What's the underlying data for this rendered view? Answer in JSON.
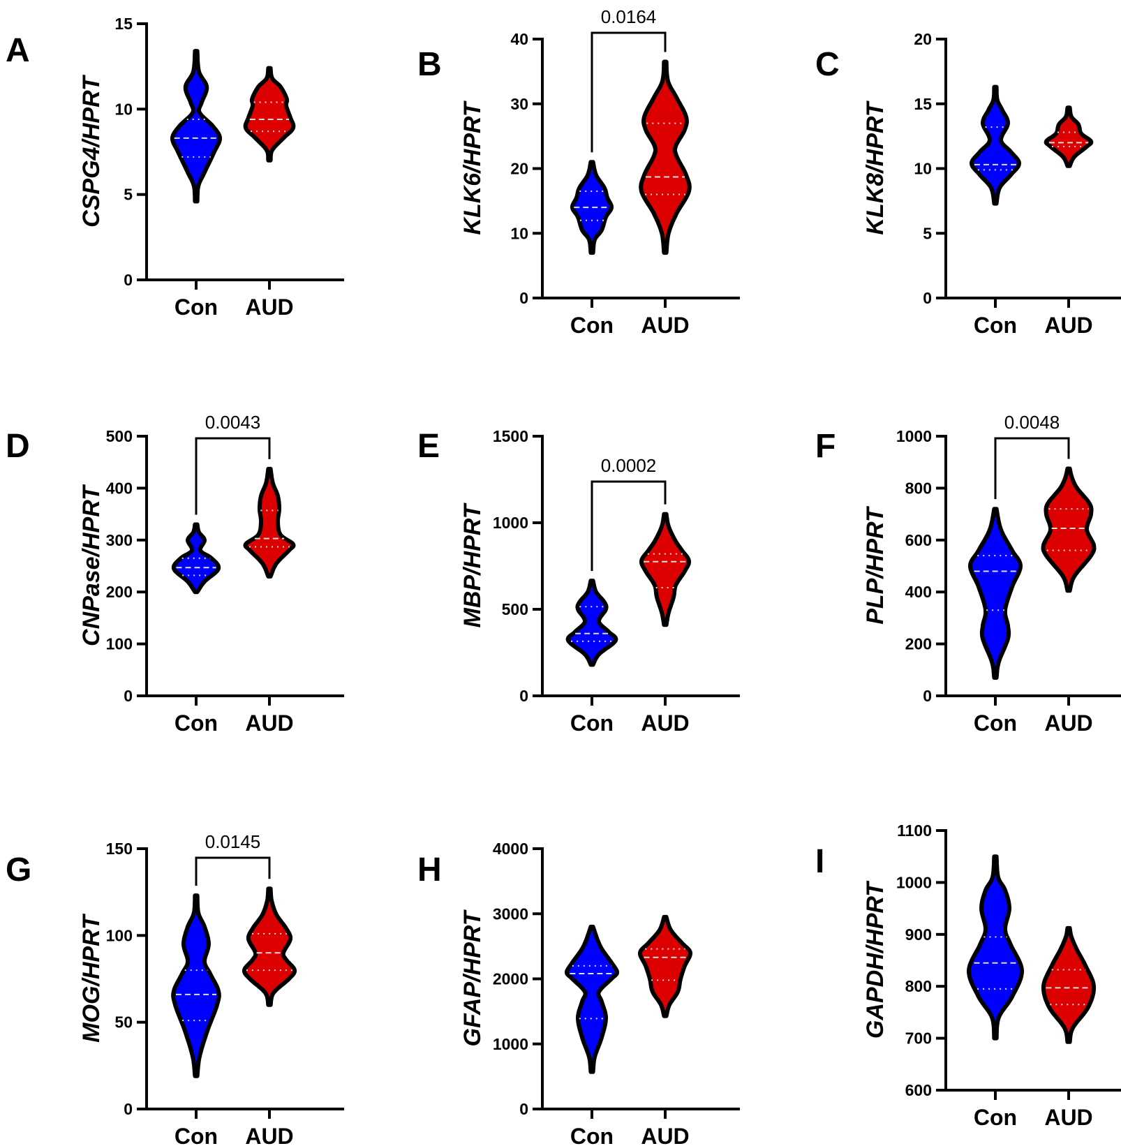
{
  "chart_data": [
    {
      "type": "violin",
      "panel": "A",
      "ylabel": "CSPG4/HPRT",
      "ylim": [
        0,
        15
      ],
      "yticks": [
        0,
        5,
        10,
        15
      ],
      "categories": [
        "Con",
        "AUD"
      ],
      "p_value": null,
      "series": [
        {
          "category": "Con",
          "color": "#0000FF",
          "min": 4.6,
          "max": 13.4,
          "median": 8.3,
          "q1": 7.2,
          "q3": 9.4,
          "density": [
            [
              4.6,
              0.04
            ],
            [
              5.5,
              0.08
            ],
            [
              6.3,
              0.3
            ],
            [
              7.5,
              0.65
            ],
            [
              8.3,
              0.85
            ],
            [
              9,
              0.6
            ],
            [
              9.8,
              0.12
            ],
            [
              10.4,
              0.2
            ],
            [
              11.3,
              0.38
            ],
            [
              12.2,
              0.1
            ],
            [
              13.4,
              0.04
            ]
          ]
        },
        {
          "category": "AUD",
          "color": "#DD0000",
          "min": 7,
          "max": 12.4,
          "median": 9.4,
          "q1": 8.7,
          "q3": 10.4,
          "density": [
            [
              7,
              0.04
            ],
            [
              7.6,
              0.1
            ],
            [
              8.3,
              0.5
            ],
            [
              8.9,
              0.85
            ],
            [
              9.5,
              0.75
            ],
            [
              10.2,
              0.6
            ],
            [
              10.6,
              0.62
            ],
            [
              11.3,
              0.4
            ],
            [
              11.8,
              0.1
            ],
            [
              12.4,
              0.04
            ]
          ]
        }
      ]
    },
    {
      "type": "violin",
      "panel": "B",
      "ylabel": "KLK6/HPRT",
      "ylim": [
        0,
        40
      ],
      "yticks": [
        0,
        10,
        20,
        30,
        40
      ],
      "categories": [
        "Con",
        "AUD"
      ],
      "p_value": "0.0164",
      "series": [
        {
          "category": "Con",
          "color": "#0000FF",
          "min": 7,
          "max": 21,
          "median": 14,
          "q1": 12,
          "q3": 16.5,
          "density": [
            [
              7,
              0.04
            ],
            [
              9,
              0.1
            ],
            [
              10.5,
              0.35
            ],
            [
              12.5,
              0.5
            ],
            [
              14,
              0.7
            ],
            [
              15.5,
              0.55
            ],
            [
              17,
              0.45
            ],
            [
              19,
              0.15
            ],
            [
              21,
              0.04
            ]
          ]
        },
        {
          "category": "AUD",
          "color": "#DD0000",
          "min": 7,
          "max": 36.5,
          "median": 18.7,
          "q1": 16,
          "q3": 27,
          "density": [
            [
              7,
              0.04
            ],
            [
              10,
              0.12
            ],
            [
              13,
              0.4
            ],
            [
              16.5,
              0.85
            ],
            [
              19,
              0.75
            ],
            [
              22,
              0.4
            ],
            [
              23.5,
              0.38
            ],
            [
              26,
              0.7
            ],
            [
              28,
              0.75
            ],
            [
              31,
              0.4
            ],
            [
              33.5,
              0.1
            ],
            [
              36.5,
              0.04
            ]
          ]
        }
      ]
    },
    {
      "type": "violin",
      "panel": "C",
      "ylabel": "KLK8/HPRT",
      "ylim": [
        0,
        20
      ],
      "yticks": [
        0,
        5,
        10,
        15,
        20
      ],
      "categories": [
        "Con",
        "AUD"
      ],
      "p_value": null,
      "series": [
        {
          "category": "Con",
          "color": "#0000FF",
          "min": 7.3,
          "max": 16.3,
          "median": 10.3,
          "q1": 9.9,
          "q3": 13.2,
          "density": [
            [
              7.3,
              0.04
            ],
            [
              8.5,
              0.15
            ],
            [
              9.5,
              0.55
            ],
            [
              10.4,
              0.85
            ],
            [
              11.3,
              0.55
            ],
            [
              12.2,
              0.2
            ],
            [
              13.5,
              0.45
            ],
            [
              14.5,
              0.25
            ],
            [
              15.3,
              0.07
            ],
            [
              16.3,
              0.04
            ]
          ]
        },
        {
          "category": "AUD",
          "color": "#DD0000",
          "min": 10.2,
          "max": 14.7,
          "median": 12,
          "q1": 11.7,
          "q3": 12.8,
          "density": [
            [
              10.2,
              0.04
            ],
            [
              10.9,
              0.2
            ],
            [
              11.7,
              0.65
            ],
            [
              12.1,
              0.8
            ],
            [
              12.7,
              0.45
            ],
            [
              13.4,
              0.35
            ],
            [
              14,
              0.1
            ],
            [
              14.7,
              0.04
            ]
          ]
        }
      ]
    },
    {
      "type": "violin",
      "panel": "D",
      "ylabel": "CNPase/HPRT",
      "ylim": [
        0,
        500
      ],
      "yticks": [
        0,
        100,
        200,
        300,
        400,
        500
      ],
      "categories": [
        "Con",
        "AUD"
      ],
      "p_value": "0.0043",
      "series": [
        {
          "category": "Con",
          "color": "#0000FF",
          "min": 200,
          "max": 330,
          "median": 247,
          "q1": 232,
          "q3": 265,
          "density": [
            [
              200,
              0.04
            ],
            [
              220,
              0.3
            ],
            [
              245,
              0.8
            ],
            [
              265,
              0.55
            ],
            [
              280,
              0.15
            ],
            [
              300,
              0.3
            ],
            [
              315,
              0.1
            ],
            [
              330,
              0.04
            ]
          ]
        },
        {
          "category": "AUD",
          "color": "#DD0000",
          "min": 230,
          "max": 437,
          "median": 303,
          "q1": 287,
          "q3": 357,
          "density": [
            [
              230,
              0.04
            ],
            [
              255,
              0.25
            ],
            [
              280,
              0.7
            ],
            [
              292,
              0.85
            ],
            [
              310,
              0.4
            ],
            [
              335,
              0.3
            ],
            [
              360,
              0.35
            ],
            [
              385,
              0.3
            ],
            [
              410,
              0.12
            ],
            [
              437,
              0.04
            ]
          ]
        }
      ]
    },
    {
      "type": "violin",
      "panel": "E",
      "ylabel": "MBP/HPRT",
      "ylim": [
        0,
        1500
      ],
      "yticks": [
        0,
        500,
        1000,
        1500
      ],
      "categories": [
        "Con",
        "AUD"
      ],
      "p_value": "0.0002",
      "series": [
        {
          "category": "Con",
          "color": "#0000FF",
          "min": 180,
          "max": 665,
          "median": 360,
          "q1": 315,
          "q3": 515,
          "density": [
            [
              180,
              0.04
            ],
            [
              240,
              0.25
            ],
            [
              320,
              0.85
            ],
            [
              370,
              0.6
            ],
            [
              430,
              0.25
            ],
            [
              500,
              0.5
            ],
            [
              540,
              0.45
            ],
            [
              600,
              0.15
            ],
            [
              665,
              0.04
            ]
          ]
        },
        {
          "category": "AUD",
          "color": "#DD0000",
          "min": 410,
          "max": 1050,
          "median": 775,
          "q1": 625,
          "q3": 820,
          "density": [
            [
              410,
              0.04
            ],
            [
              480,
              0.12
            ],
            [
              570,
              0.3
            ],
            [
              640,
              0.38
            ],
            [
              720,
              0.7
            ],
            [
              780,
              0.85
            ],
            [
              840,
              0.6
            ],
            [
              900,
              0.35
            ],
            [
              980,
              0.12
            ],
            [
              1050,
              0.04
            ]
          ]
        }
      ]
    },
    {
      "type": "violin",
      "panel": "F",
      "ylabel": "PLP/HPRT",
      "ylim": [
        0,
        1000
      ],
      "yticks": [
        0,
        200,
        400,
        600,
        800,
        1000
      ],
      "categories": [
        "Con",
        "AUD"
      ],
      "p_value": "0.0048",
      "series": [
        {
          "category": "Con",
          "color": "#0000FF",
          "min": 70,
          "max": 720,
          "median": 480,
          "q1": 330,
          "q3": 540,
          "density": [
            [
              70,
              0.04
            ],
            [
              130,
              0.12
            ],
            [
              220,
              0.45
            ],
            [
              270,
              0.45
            ],
            [
              330,
              0.35
            ],
            [
              420,
              0.6
            ],
            [
              500,
              0.9
            ],
            [
              560,
              0.6
            ],
            [
              640,
              0.2
            ],
            [
              720,
              0.04
            ]
          ]
        },
        {
          "category": "AUD",
          "color": "#DD0000",
          "min": 405,
          "max": 875,
          "median": 645,
          "q1": 560,
          "q3": 720,
          "density": [
            [
              405,
              0.04
            ],
            [
              460,
              0.2
            ],
            [
              540,
              0.8
            ],
            [
              580,
              0.9
            ],
            [
              640,
              0.65
            ],
            [
              700,
              0.8
            ],
            [
              740,
              0.75
            ],
            [
              800,
              0.3
            ],
            [
              840,
              0.12
            ],
            [
              875,
              0.04
            ]
          ]
        }
      ]
    },
    {
      "type": "violin",
      "panel": "G",
      "ylabel": "MOG/HPRT",
      "ylim": [
        0,
        150
      ],
      "yticks": [
        0,
        50,
        100,
        150
      ],
      "categories": [
        "Con",
        "AUD"
      ],
      "p_value": "0.0145",
      "series": [
        {
          "category": "Con",
          "color": "#0000FF",
          "min": 19,
          "max": 123,
          "median": 66,
          "q1": 51,
          "q3": 80,
          "density": [
            [
              19,
              0.04
            ],
            [
              30,
              0.12
            ],
            [
              45,
              0.4
            ],
            [
              60,
              0.75
            ],
            [
              68,
              0.8
            ],
            [
              78,
              0.5
            ],
            [
              85,
              0.3
            ],
            [
              95,
              0.45
            ],
            [
              105,
              0.3
            ],
            [
              113,
              0.08
            ],
            [
              123,
              0.04
            ]
          ]
        },
        {
          "category": "AUD",
          "color": "#DD0000",
          "min": 60,
          "max": 127,
          "median": 90,
          "q1": 80,
          "q3": 101,
          "density": [
            [
              60,
              0.04
            ],
            [
              67,
              0.15
            ],
            [
              75,
              0.7
            ],
            [
              80,
              0.9
            ],
            [
              86,
              0.6
            ],
            [
              90,
              0.5
            ],
            [
              98,
              0.75
            ],
            [
              104,
              0.6
            ],
            [
              112,
              0.25
            ],
            [
              120,
              0.08
            ],
            [
              127,
              0.04
            ]
          ]
        }
      ]
    },
    {
      "type": "violin",
      "panel": "H",
      "ylabel": "GFAP/HPRT",
      "ylim": [
        0,
        4000
      ],
      "yticks": [
        0,
        1000,
        2000,
        3000,
        4000
      ],
      "categories": [
        "Con",
        "AUD"
      ],
      "p_value": null,
      "series": [
        {
          "category": "Con",
          "color": "#0000FF",
          "min": 570,
          "max": 2800,
          "median": 2080,
          "q1": 1390,
          "q3": 2200,
          "density": [
            [
              570,
              0.04
            ],
            [
              800,
              0.1
            ],
            [
              1100,
              0.35
            ],
            [
              1400,
              0.5
            ],
            [
              1650,
              0.35
            ],
            [
              1800,
              0.25
            ],
            [
              2000,
              0.7
            ],
            [
              2100,
              0.9
            ],
            [
              2250,
              0.7
            ],
            [
              2500,
              0.3
            ],
            [
              2800,
              0.04
            ]
          ]
        },
        {
          "category": "AUD",
          "color": "#DD0000",
          "min": 1430,
          "max": 2950,
          "median": 2330,
          "q1": 1980,
          "q3": 2460,
          "density": [
            [
              1430,
              0.04
            ],
            [
              1600,
              0.15
            ],
            [
              1800,
              0.45
            ],
            [
              2000,
              0.55
            ],
            [
              2200,
              0.7
            ],
            [
              2400,
              0.9
            ],
            [
              2550,
              0.6
            ],
            [
              2750,
              0.2
            ],
            [
              2950,
              0.04
            ]
          ]
        }
      ]
    },
    {
      "type": "violin",
      "panel": "I",
      "ylabel": "GAPDH/HPRT",
      "ylim": [
        600,
        1100
      ],
      "yticks": [
        600,
        700,
        800,
        900,
        1000,
        1100
      ],
      "categories": [
        "Con",
        "AUD"
      ],
      "p_value": null,
      "series": [
        {
          "category": "Con",
          "color": "#0000FF",
          "min": 700,
          "max": 1050,
          "median": 845,
          "q1": 795,
          "q3": 895,
          "density": [
            [
              700,
              0.04
            ],
            [
              740,
              0.12
            ],
            [
              780,
              0.6
            ],
            [
              830,
              0.95
            ],
            [
              880,
              0.55
            ],
            [
              910,
              0.35
            ],
            [
              950,
              0.5
            ],
            [
              985,
              0.35
            ],
            [
              1010,
              0.1
            ],
            [
              1050,
              0.04
            ]
          ]
        },
        {
          "category": "AUD",
          "color": "#DD0000",
          "min": 693,
          "max": 912,
          "median": 797,
          "q1": 765,
          "q3": 832,
          "density": [
            [
              693,
              0.04
            ],
            [
              720,
              0.15
            ],
            [
              760,
              0.7
            ],
            [
              800,
              0.9
            ],
            [
              840,
              0.6
            ],
            [
              870,
              0.3
            ],
            [
              895,
              0.1
            ],
            [
              912,
              0.04
            ]
          ]
        }
      ]
    }
  ]
}
